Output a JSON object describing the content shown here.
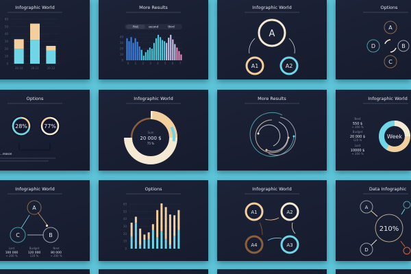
{
  "colors": {
    "background": "#5ec5d9",
    "card": "#1a1f33",
    "cyan": "#6fd6e8",
    "tan": "#f3cf9e",
    "cream": "#f4ead4",
    "brown": "#8a5f3a",
    "orange": "#e0663a"
  },
  "cards": {
    "bar1": {
      "title": "Infographic World"
    },
    "hist": {
      "title": "More Results",
      "legend": [
        "first",
        "second",
        "third"
      ]
    },
    "tree": {
      "title": "Infographic World",
      "nodes": [
        "A",
        "A1",
        "A2"
      ]
    },
    "options1": {
      "title": "Options",
      "nodes": [
        "A",
        "B",
        "C",
        "D"
      ]
    },
    "rings": {
      "title": "Options",
      "ring1": "28%",
      "ring2": "77%",
      "ring1_value": 28,
      "ring2_value": 77,
      "caption": "...reason"
    },
    "donut": {
      "title": "Infographic World",
      "label": "Sum",
      "value": "20 000 $",
      "percent": "75 %",
      "fill_percent": 75
    },
    "spiral": {
      "title": "More Results"
    },
    "week": {
      "title": "Infographic World",
      "center": "Week",
      "stats": [
        {
          "label": "Next",
          "value": "550 $",
          "change": "+ 200 %"
        },
        {
          "label": "Budget",
          "value": "20 000 $",
          "change": "120 %"
        },
        {
          "label": "Last",
          "value": "10000 $",
          "change": "+ 200 %"
        }
      ]
    },
    "triangle": {
      "title": "Infographic World",
      "nodes": [
        "A",
        "B",
        "C"
      ],
      "stats": [
        {
          "label": "Last",
          "value": "100 000",
          "change": "+ 200 %"
        },
        {
          "label": "Budget",
          "value": "120 000",
          "change": "120 %"
        },
        {
          "label": "Next",
          "value": "80 000",
          "change": "+ 200 %"
        }
      ]
    },
    "bar2": {
      "title": "Options"
    },
    "cycle": {
      "title": "Infographic World",
      "nodes": [
        "A1",
        "A2",
        "A3",
        "A4"
      ]
    },
    "data": {
      "title": "Data Infographic",
      "center": "210%",
      "nodes": [
        "A",
        "D"
      ]
    }
  },
  "chart_data": [
    {
      "type": "bar",
      "stacked": true,
      "categories": [
        "20.10",
        "20.11",
        "20.12"
      ],
      "yticks": [
        0,
        10,
        20,
        30,
        40,
        50,
        60
      ],
      "ylim": [
        0,
        60
      ],
      "series": [
        {
          "values": [
            20,
            32,
            18
          ],
          "color": "#6fd6e8"
        },
        {
          "values": [
            13,
            22,
            6
          ],
          "color": "#f3cf9e"
        }
      ]
    },
    {
      "type": "bar",
      "xticks": [
        "0",
        "1",
        "2",
        "3",
        "4",
        "5",
        "6",
        "7"
      ],
      "yticks": [
        0,
        10,
        20,
        30,
        40
      ],
      "ylim": [
        0,
        45
      ],
      "values": [
        38,
        33,
        40,
        30,
        38,
        32,
        24,
        18,
        8,
        14,
        18,
        22,
        20,
        30,
        38,
        44,
        40,
        35,
        33,
        30,
        39,
        44,
        36,
        28,
        22,
        16,
        10
      ]
    },
    {
      "type": "bar",
      "stacked": true,
      "yticks": [
        0,
        10,
        20,
        30,
        40,
        50,
        60
      ],
      "ylim": [
        0,
        60
      ],
      "series": [
        {
          "values": [
            16,
            35,
            5,
            12,
            13,
            25,
            15,
            24,
            13,
            5,
            17,
            25
          ],
          "color": "#6fd6e8"
        },
        {
          "values": [
            19,
            8,
            22,
            7,
            9,
            8,
            37,
            37,
            43,
            41,
            28,
            27
          ],
          "color": "#f3cf9e"
        }
      ]
    }
  ]
}
